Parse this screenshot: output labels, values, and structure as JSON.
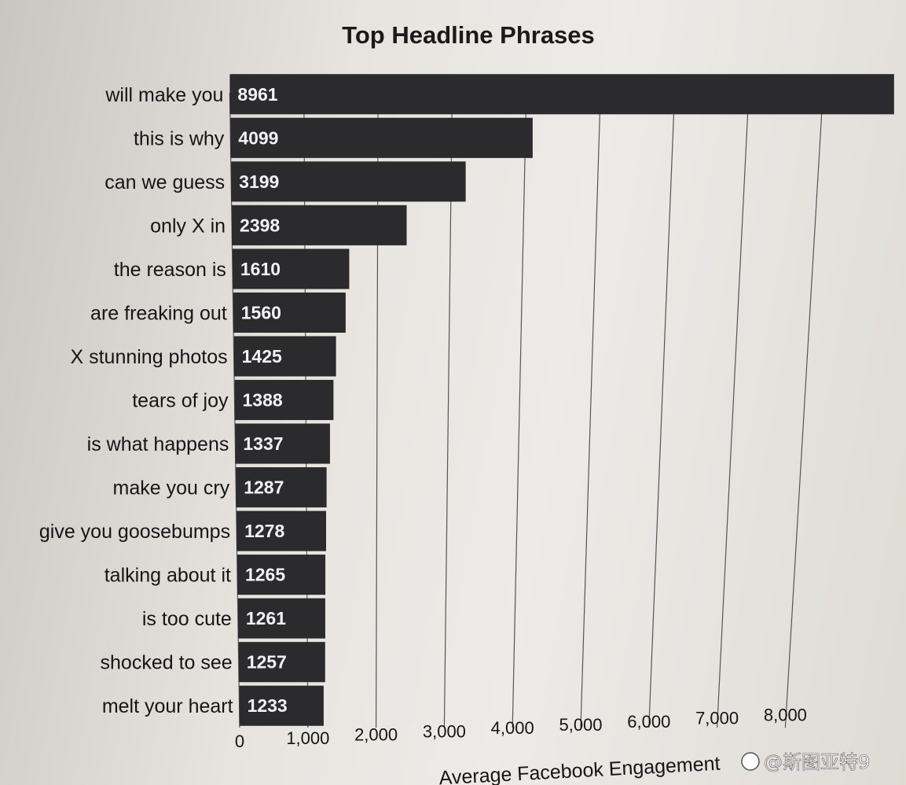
{
  "chart_data": {
    "type": "bar",
    "orientation": "horizontal",
    "title": "Top Headline Phrases",
    "xlabel": "Average Facebook Engagement",
    "ylabel": "",
    "categories": [
      "will make you",
      "this is why",
      "can we guess",
      "only X in",
      "the reason is",
      "are freaking out",
      "X stunning photos",
      "tears of joy",
      "is what happens",
      "make you cry",
      "give you goosebumps",
      "talking about it",
      "is too cute",
      "shocked to see",
      "melt your heart"
    ],
    "values": [
      8961,
      4099,
      3199,
      2398,
      1610,
      1560,
      1425,
      1388,
      1337,
      1287,
      1278,
      1265,
      1261,
      1257,
      1233
    ],
    "xticks": [
      "0",
      "1,000",
      "2,000",
      "3,000",
      "4,000",
      "5,000",
      "6,000",
      "7,000",
      "8,000"
    ],
    "xlim": [
      0,
      9000
    ],
    "grid": true,
    "bar_color": "#2b2a2d",
    "value_label_color": "#f2f2f2"
  },
  "watermark": "@斯图亚特9"
}
